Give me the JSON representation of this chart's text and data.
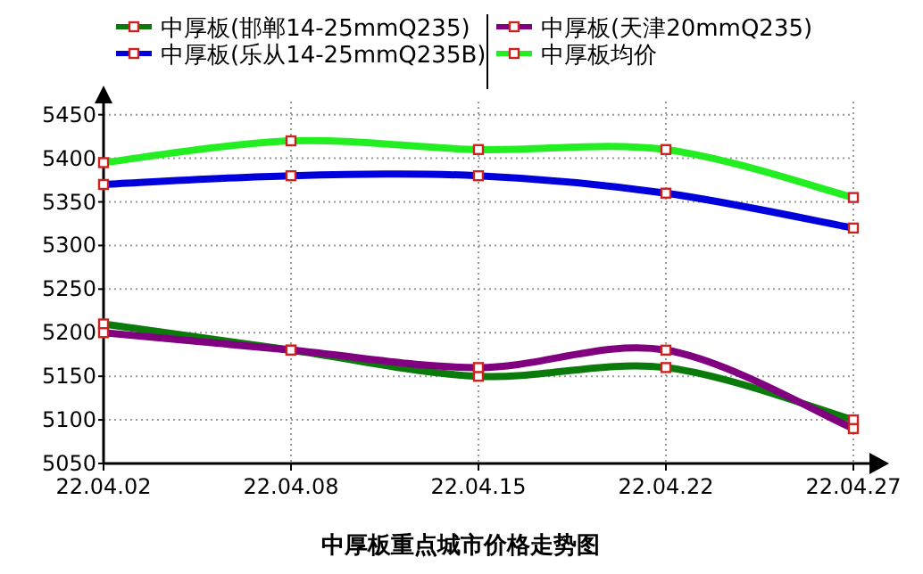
{
  "chart_data": {
    "type": "line",
    "title": "中厚板重点城市价格走势图",
    "categories": [
      "22.04.02",
      "22.04.08",
      "22.04.15",
      "22.04.22",
      "22.04.27"
    ],
    "series": [
      {
        "name": "中厚板(邯郸14-25mmQ235)",
        "color": "#0a7a0a",
        "values": [
          5210,
          5180,
          5150,
          5160,
          5100
        ]
      },
      {
        "name": "中厚板(天津20mmQ235)",
        "color": "#800080",
        "values": [
          5200,
          5180,
          5160,
          5180,
          5090
        ]
      },
      {
        "name": "中厚板(乐从14-25mmQ235B)",
        "color": "#0000dd",
        "values": [
          5370,
          5380,
          5380,
          5360,
          5320
        ]
      },
      {
        "name": "中厚板均价",
        "color": "#22ee22",
        "values": [
          5395,
          5420,
          5410,
          5410,
          5355
        ]
      }
    ],
    "ylim": [
      5050,
      5465
    ],
    "yticks": [
      5050,
      5100,
      5150,
      5200,
      5250,
      5300,
      5350,
      5400,
      5450
    ],
    "grid": true,
    "legend": "top",
    "marker": "square"
  }
}
